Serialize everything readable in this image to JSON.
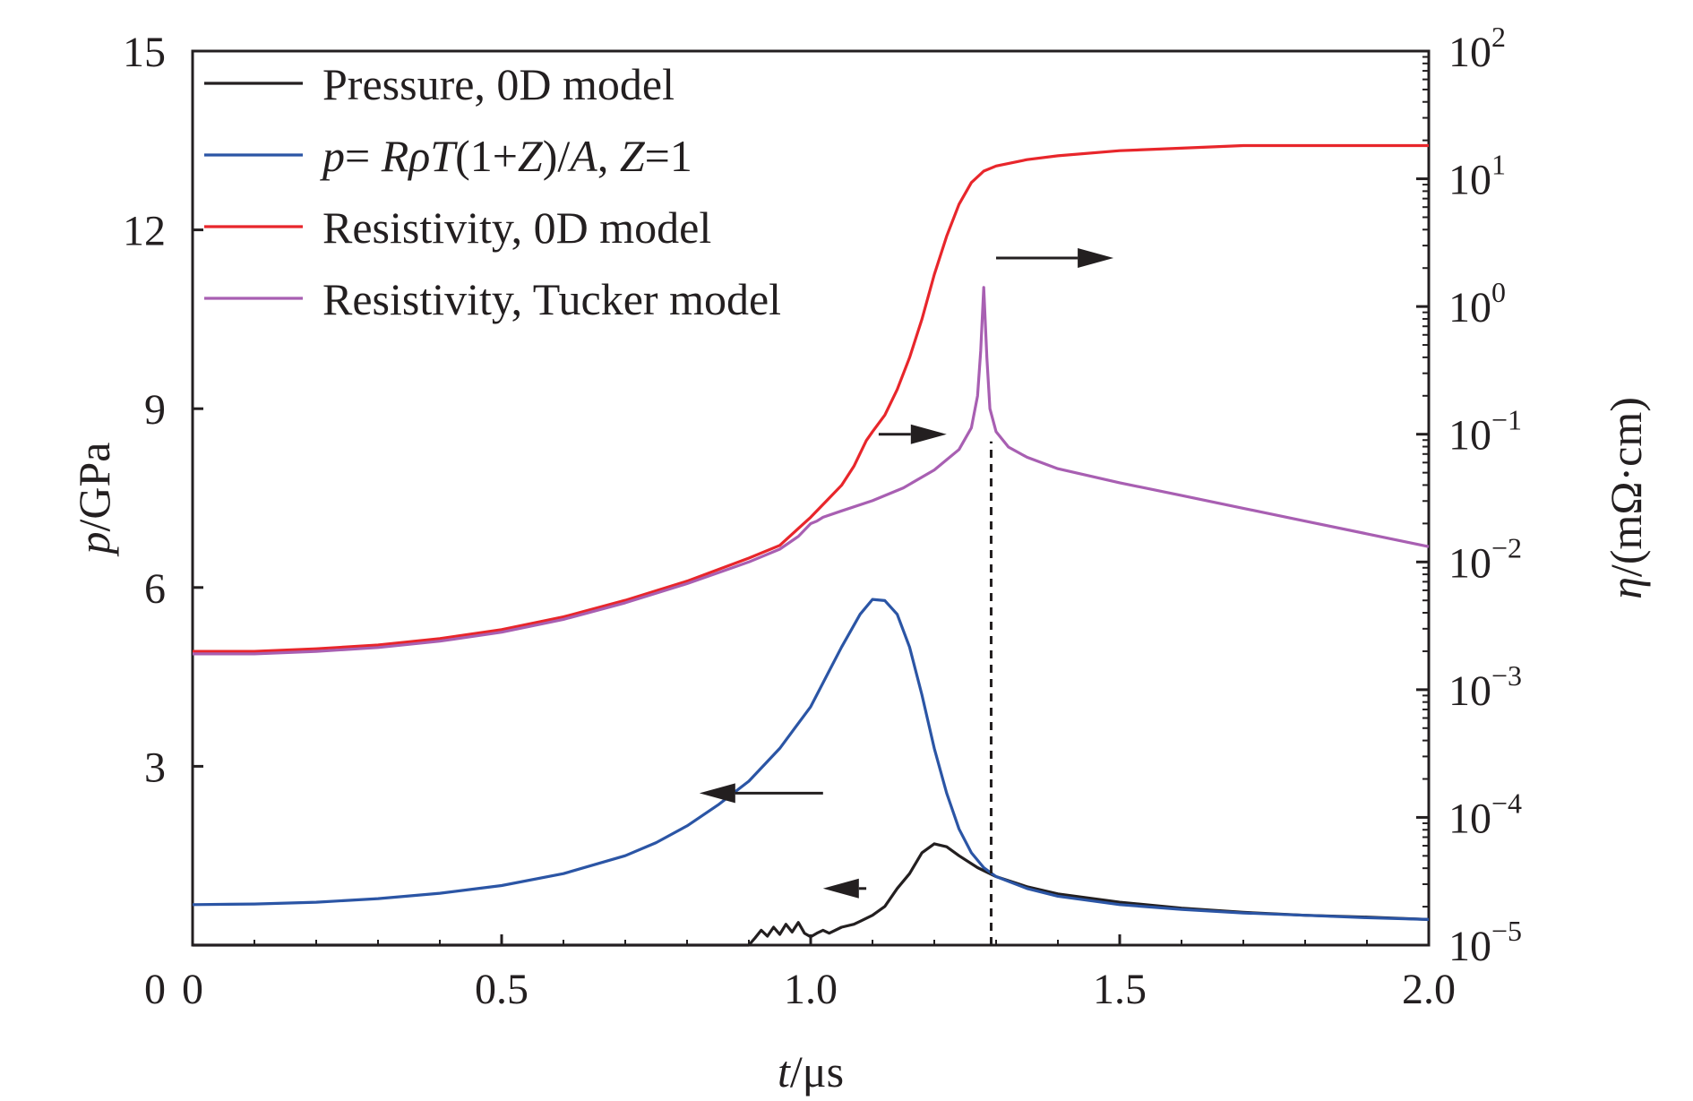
{
  "chart_data": {
    "type": "line",
    "xlabel_italic": "t",
    "xlabel_unit": "/μs",
    "ylabel_left_italic": "p",
    "ylabel_left_unit": "/GPa",
    "ylabel_right_italic": "η",
    "ylabel_right_unit": "/(mΩ·cm)",
    "xlim": [
      0,
      2.0
    ],
    "ylim_left": [
      0,
      15
    ],
    "ylim_right_log10": [
      -5,
      2
    ],
    "right_axis_scale": "log",
    "x_ticks": [
      "0",
      "0.5",
      "1.0",
      "1.5",
      "2.0"
    ],
    "x_tick_values": [
      0,
      0.5,
      1.0,
      1.5,
      2.0
    ],
    "y_left_ticks": [
      "0",
      "3",
      "6",
      "9",
      "12",
      "15"
    ],
    "y_left_tick_values": [
      0,
      3,
      6,
      9,
      12,
      15
    ],
    "y_right_ticks": [
      {
        "base": "10",
        "exp": "−5"
      },
      {
        "base": "10",
        "exp": "−4"
      },
      {
        "base": "10",
        "exp": "−3"
      },
      {
        "base": "10",
        "exp": "−2"
      },
      {
        "base": "10",
        "exp": "−1"
      },
      {
        "base": "10",
        "exp": "0"
      },
      {
        "base": "10",
        "exp": "1"
      },
      {
        "base": "10",
        "exp": "2"
      }
    ],
    "y_right_tick_exponents": [
      -5,
      -4,
      -3,
      -2,
      -1,
      0,
      1,
      2
    ],
    "grid": false,
    "legend_position": "top-left",
    "legend": [
      {
        "parts": [
          {
            "t": "Pressure, 0D model",
            "i": false
          }
        ]
      },
      {
        "parts": [
          {
            "t": "p",
            "i": true
          },
          {
            "t": "= ",
            "i": false
          },
          {
            "t": "Rρ",
            "i": true
          },
          {
            "t": "T",
            "i": true
          },
          {
            "t": "(1+",
            "i": false
          },
          {
            "t": "Z",
            "i": true
          },
          {
            "t": ")/",
            "i": false
          },
          {
            "t": "A",
            "i": true
          },
          {
            "t": ", ",
            "i": false
          },
          {
            "t": "Z",
            "i": true
          },
          {
            "t": "=1",
            "i": false
          }
        ]
      },
      {
        "parts": [
          {
            "t": "Resistivity, 0D model",
            "i": false
          }
        ]
      },
      {
        "parts": [
          {
            "t": "Resistivity, Tucker model",
            "i": false
          }
        ]
      }
    ],
    "series": [
      {
        "name": "Pressure, 0D model",
        "color": "#231f20",
        "axis": "left",
        "x": [
          0,
          0.85,
          0.9,
          0.91,
          0.92,
          0.93,
          0.94,
          0.95,
          0.96,
          0.97,
          0.98,
          0.99,
          1.0,
          1.01,
          1.02,
          1.03,
          1.05,
          1.07,
          1.08,
          1.1,
          1.12,
          1.14,
          1.16,
          1.18,
          1.2,
          1.22,
          1.24,
          1.27,
          1.3,
          1.35,
          1.4,
          1.5,
          1.6,
          1.7,
          1.8,
          1.9,
          2.0
        ],
        "y": [
          0,
          0,
          0,
          0.12,
          0.25,
          0.15,
          0.3,
          0.18,
          0.35,
          0.22,
          0.38,
          0.2,
          0.14,
          0.2,
          0.25,
          0.2,
          0.3,
          0.35,
          0.4,
          0.5,
          0.65,
          0.95,
          1.2,
          1.55,
          1.7,
          1.65,
          1.5,
          1.3,
          1.15,
          0.98,
          0.86,
          0.72,
          0.62,
          0.55,
          0.5,
          0.47,
          0.43
        ]
      },
      {
        "name": "p= RρT(1+Z)/A, Z=1",
        "color": "#2b55a5",
        "axis": "left",
        "x": [
          0,
          0.1,
          0.2,
          0.3,
          0.4,
          0.5,
          0.6,
          0.7,
          0.75,
          0.8,
          0.85,
          0.9,
          0.95,
          1.0,
          1.03,
          1.05,
          1.08,
          1.1,
          1.12,
          1.14,
          1.16,
          1.18,
          1.2,
          1.22,
          1.24,
          1.26,
          1.28,
          1.3,
          1.35,
          1.4,
          1.5,
          1.6,
          1.7,
          1.8,
          1.9,
          2.0
        ],
        "y": [
          0.68,
          0.69,
          0.72,
          0.78,
          0.87,
          1.0,
          1.2,
          1.5,
          1.72,
          2.0,
          2.35,
          2.75,
          3.3,
          4.0,
          4.6,
          5.0,
          5.55,
          5.8,
          5.78,
          5.55,
          5.0,
          4.2,
          3.3,
          2.55,
          1.95,
          1.55,
          1.3,
          1.15,
          0.95,
          0.82,
          0.68,
          0.6,
          0.54,
          0.5,
          0.46,
          0.43
        ]
      },
      {
        "name": "Resistivity, 0D model",
        "color": "#e8262b",
        "axis": "right",
        "x": [
          0,
          0.1,
          0.2,
          0.3,
          0.4,
          0.5,
          0.6,
          0.7,
          0.8,
          0.9,
          0.95,
          1.0,
          1.03,
          1.05,
          1.07,
          1.09,
          1.1,
          1.12,
          1.14,
          1.16,
          1.18,
          1.2,
          1.22,
          1.24,
          1.26,
          1.28,
          1.3,
          1.35,
          1.4,
          1.5,
          1.6,
          1.7,
          1.8,
          1.9,
          2.0
        ],
        "y_log10": [
          -2.7,
          -2.7,
          -2.68,
          -2.65,
          -2.6,
          -2.53,
          -2.43,
          -2.3,
          -2.15,
          -1.97,
          -1.87,
          -1.65,
          -1.5,
          -1.4,
          -1.25,
          -1.05,
          -0.98,
          -0.85,
          -0.65,
          -0.4,
          -0.1,
          0.25,
          0.55,
          0.8,
          0.97,
          1.06,
          1.1,
          1.15,
          1.18,
          1.22,
          1.24,
          1.26,
          1.26,
          1.26,
          1.26
        ]
      },
      {
        "name": "Resistivity, Tucker model",
        "color": "#a85fb2",
        "axis": "right",
        "x": [
          0,
          0.1,
          0.2,
          0.3,
          0.4,
          0.5,
          0.6,
          0.7,
          0.8,
          0.9,
          0.95,
          0.98,
          1.0,
          1.01,
          1.02,
          1.05,
          1.1,
          1.15,
          1.2,
          1.24,
          1.26,
          1.27,
          1.275,
          1.28,
          1.285,
          1.29,
          1.3,
          1.32,
          1.35,
          1.4,
          1.5,
          1.6,
          1.7,
          1.8,
          1.9,
          2.0
        ],
        "y_log10": [
          -2.72,
          -2.72,
          -2.7,
          -2.67,
          -2.62,
          -2.55,
          -2.45,
          -2.32,
          -2.17,
          -2.0,
          -1.9,
          -1.8,
          -1.7,
          -1.68,
          -1.65,
          -1.6,
          -1.52,
          -1.42,
          -1.28,
          -1.12,
          -0.95,
          -0.7,
          -0.35,
          0.15,
          -0.4,
          -0.8,
          -0.98,
          -1.1,
          -1.18,
          -1.27,
          -1.38,
          -1.48,
          -1.58,
          -1.68,
          -1.78,
          -1.88
        ]
      }
    ],
    "annotations": [
      {
        "type": "arrow",
        "direction": "left",
        "points_to_axis": "left",
        "x_start": 1.02,
        "x_end": 0.82,
        "y": 2.55
      },
      {
        "type": "arrow",
        "direction": "left",
        "points_to_axis": "left",
        "x_start": 1.09,
        "x_end": 1.02,
        "y": 0.95
      },
      {
        "type": "arrow",
        "direction": "right",
        "points_to_axis": "right",
        "x_start": 1.11,
        "x_end": 1.22,
        "y_log10": -1.0
      },
      {
        "type": "arrow",
        "direction": "right",
        "points_to_axis": "right",
        "x_start": 1.3,
        "x_end": 1.49,
        "y_log10": 0.38
      },
      {
        "type": "dashed-vline",
        "x": 1.292,
        "y_from": 0,
        "y_to": 8.45
      }
    ]
  }
}
